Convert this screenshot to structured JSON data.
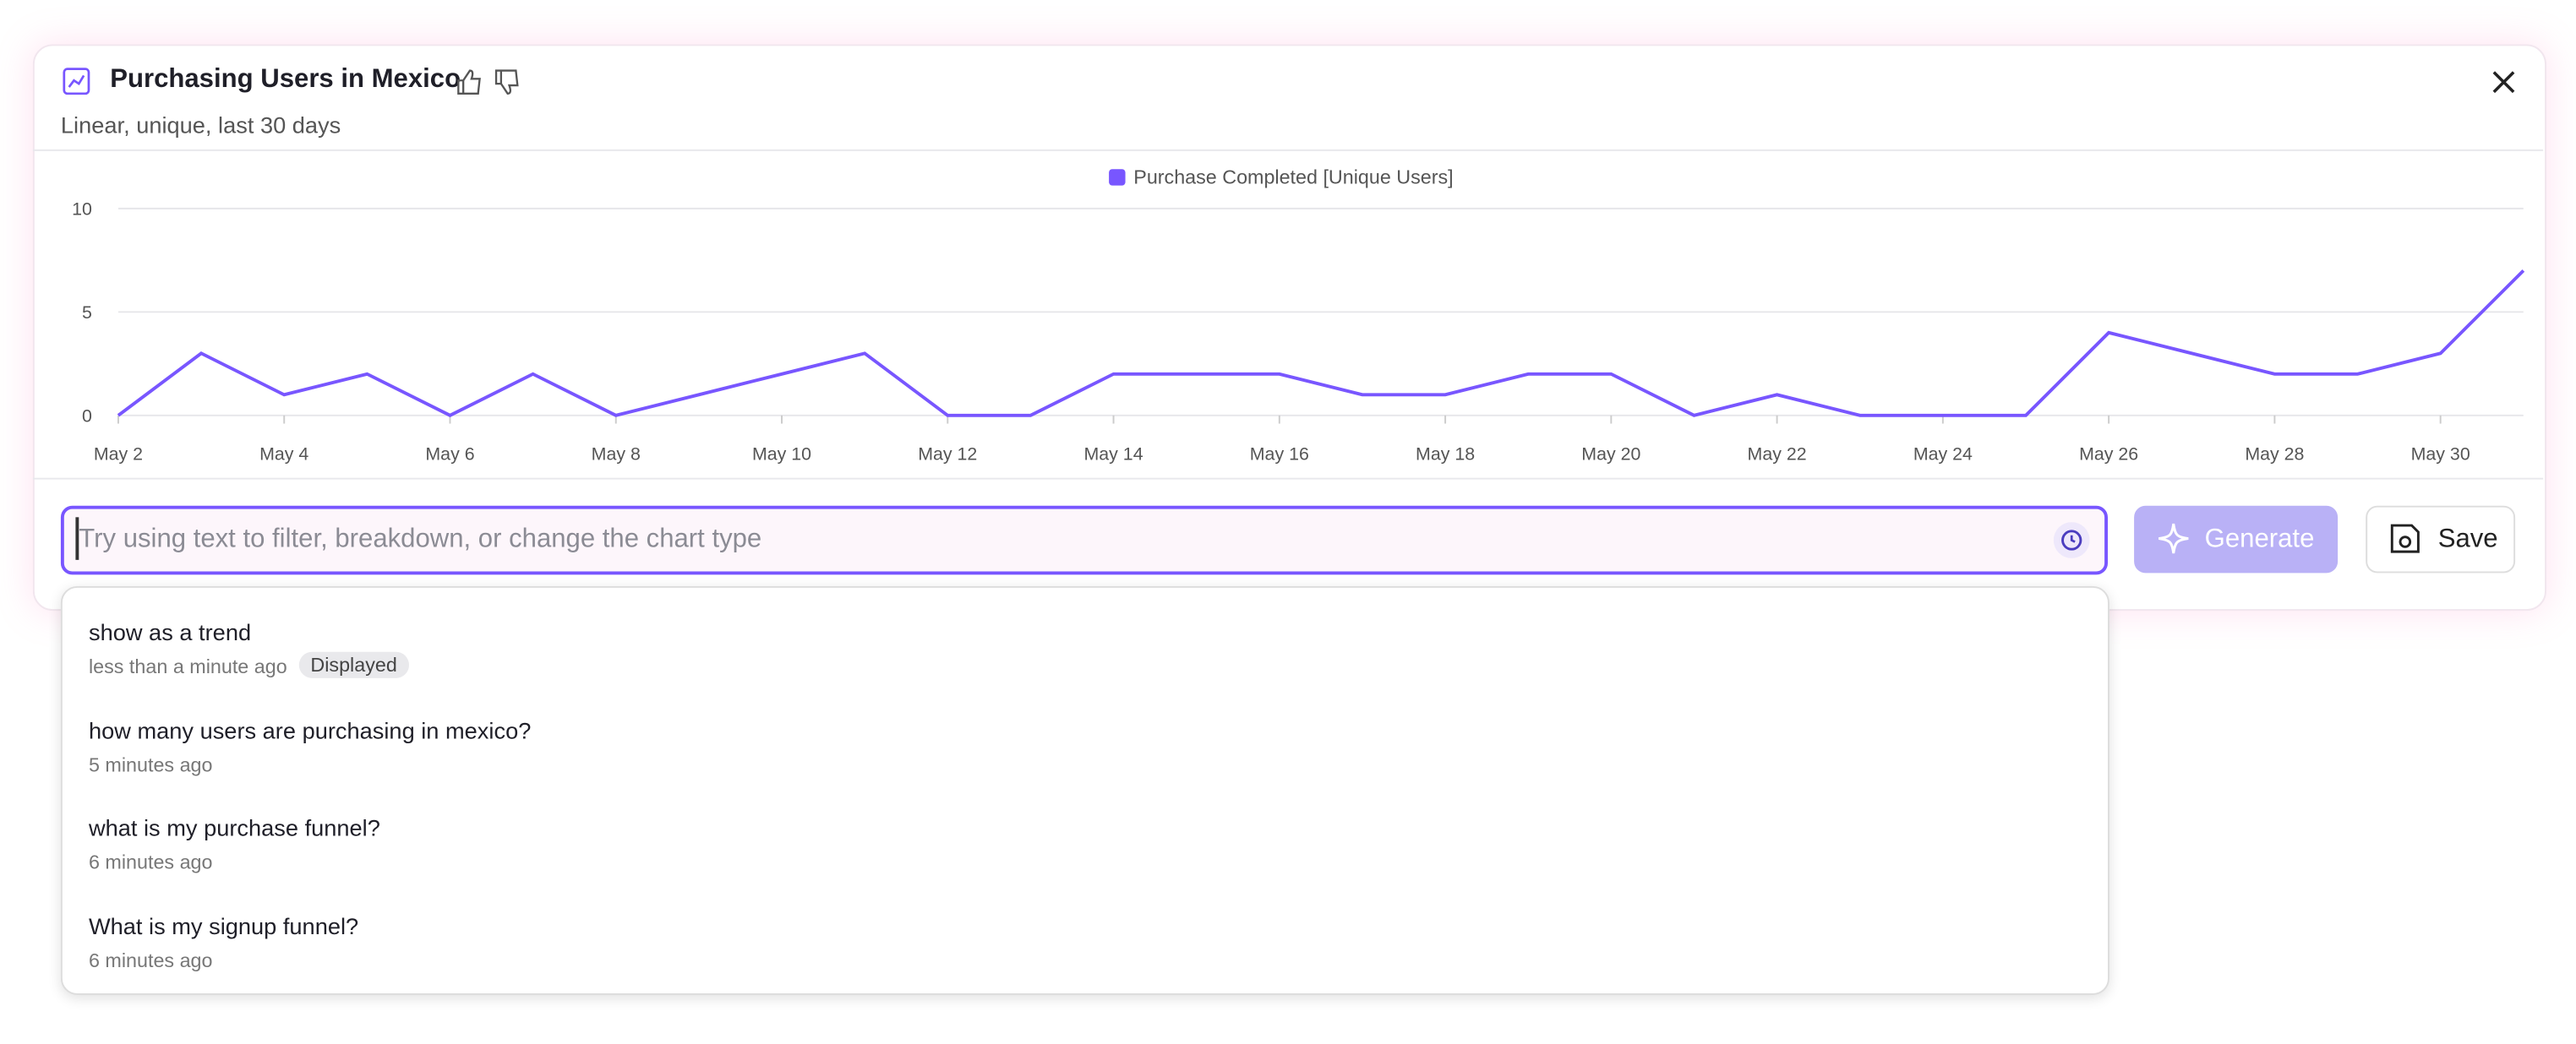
{
  "header": {
    "title": "Purchasing Users in Mexico",
    "subtitle": "Linear, unique, last 30 days"
  },
  "chart_data": {
    "type": "line",
    "categories": [
      "May 2",
      null,
      "May 4",
      null,
      "May 6",
      null,
      "May 8",
      null,
      "May 10",
      null,
      "May 12",
      null,
      "May 14",
      null,
      "May 16",
      null,
      "May 18",
      null,
      "May 20",
      null,
      "May 22",
      null,
      "May 24",
      null,
      "May 26",
      null,
      "May 28",
      null,
      "May 30",
      null
    ],
    "series": [
      {
        "name": "Purchase Completed [Unique Users]",
        "color": "#7856ff",
        "values": [
          0,
          3,
          1,
          2,
          0,
          2,
          0,
          1,
          2,
          3,
          0,
          0,
          2,
          2,
          2,
          1,
          1,
          2,
          2,
          0,
          1,
          0,
          0,
          0,
          4,
          3,
          2,
          2,
          3,
          7
        ]
      }
    ],
    "ylim": [
      0,
      10
    ],
    "yticks": [
      0,
      5,
      10
    ],
    "grid": true,
    "legend": "top"
  },
  "input": {
    "placeholder": "Try using text to filter, breakdown, or change the chart type"
  },
  "buttons": {
    "generate": "Generate",
    "save": "Save"
  },
  "history": [
    {
      "text": "show as a trend",
      "time": "less than a minute ago",
      "badge": "Displayed"
    },
    {
      "text": "how many users are purchasing in mexico?",
      "time": "5 minutes ago"
    },
    {
      "text": "what is my purchase funnel?",
      "time": "6 minutes ago"
    },
    {
      "text": "What is my signup funnel?",
      "time": "6 minutes ago"
    }
  ]
}
